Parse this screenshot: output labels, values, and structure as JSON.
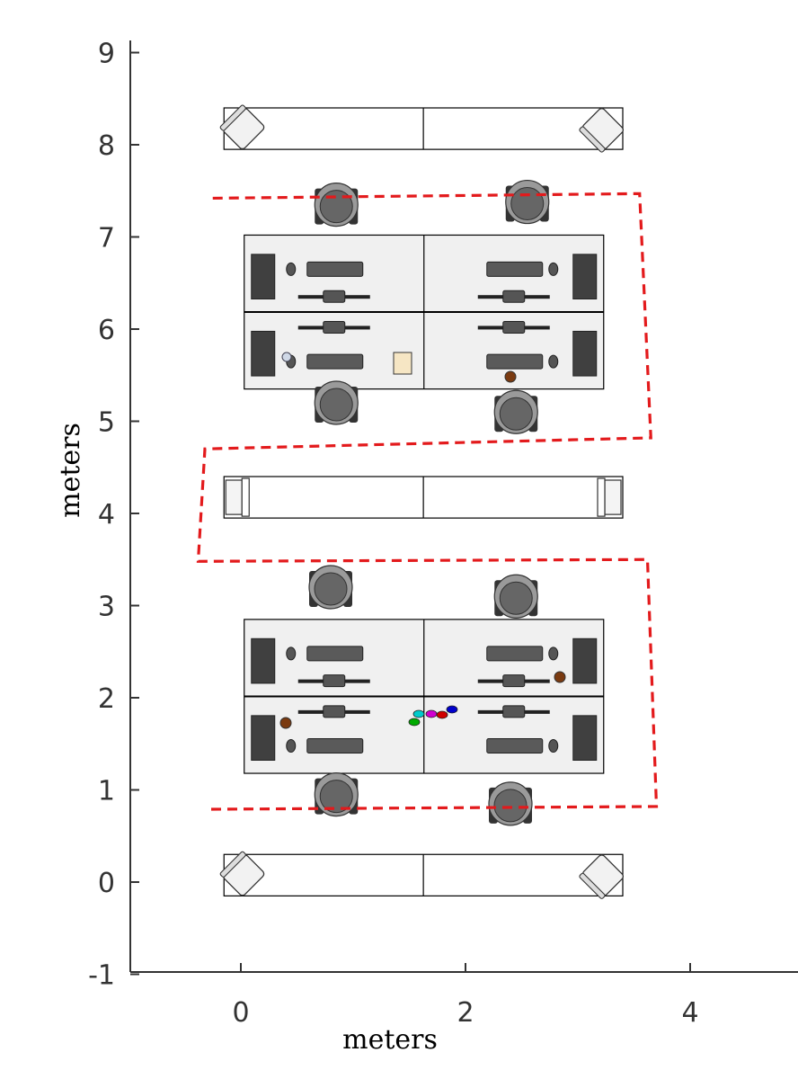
{
  "chart_data": {
    "type": "floor-plan",
    "xlabel": "meters",
    "ylabel": "meters",
    "xlim": [
      -1,
      5
    ],
    "ylim": [
      -1,
      9
    ],
    "x_ticks": [
      0,
      2,
      4
    ],
    "y_ticks": [
      -1,
      0,
      1,
      2,
      3,
      4,
      5,
      6,
      7,
      8,
      9
    ],
    "grid": false,
    "path": {
      "style": "dashed",
      "color": "#e31a1c",
      "points": [
        [
          -0.25,
          7.42
        ],
        [
          3.55,
          7.47
        ],
        [
          3.65,
          4.82
        ],
        [
          -0.32,
          4.7
        ],
        [
          -0.38,
          3.48
        ],
        [
          3.62,
          3.5
        ],
        [
          3.7,
          0.82
        ],
        [
          -0.3,
          0.79
        ]
      ]
    },
    "furniture": {
      "cabinets": [
        {
          "x0": -0.15,
          "x1": 3.4,
          "y0": 7.95,
          "y1": 8.4
        },
        {
          "x0": -0.15,
          "x1": 3.4,
          "y0": 3.95,
          "y1": 4.4
        },
        {
          "x0": -0.15,
          "x1": 3.4,
          "y0": -0.15,
          "y1": 0.3
        }
      ],
      "desk_blocks": [
        {
          "x0": 0.03,
          "x1": 3.23,
          "y0": 5.35,
          "y1": 7.02
        },
        {
          "x0": 0.03,
          "x1": 3.23,
          "y0": 1.18,
          "y1": 2.85
        }
      ],
      "chairs": [
        [
          0.85,
          7.35
        ],
        [
          2.55,
          7.38
        ],
        [
          0.85,
          5.2
        ],
        [
          2.45,
          5.1
        ],
        [
          0.8,
          3.2
        ],
        [
          2.45,
          3.1
        ],
        [
          0.85,
          0.95
        ],
        [
          2.4,
          0.85
        ]
      ]
    },
    "colors": {
      "axis": "#333333",
      "path": "#e31a1c",
      "desk_fill": "#f0f0f0",
      "furniture_dark": "#404040",
      "chair_light": "#9a9a9a"
    }
  }
}
